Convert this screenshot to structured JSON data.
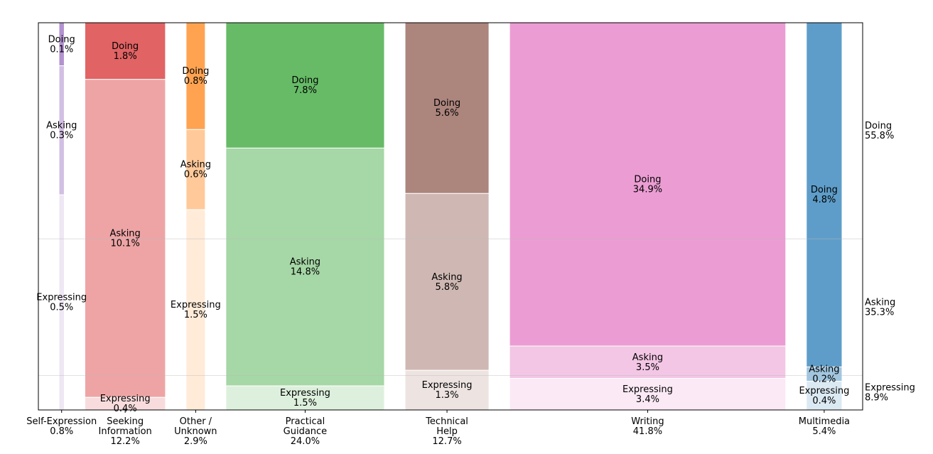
{
  "chart_data": {
    "type": "mosaic",
    "title": "",
    "xlabel": "",
    "ylabel": "",
    "ylim": [
      0,
      100
    ],
    "grid": false,
    "segment_order": [
      "Doing",
      "Asking",
      "Expressing"
    ],
    "categories": [
      {
        "name": "Self-Expression",
        "share": 0.8,
        "label": "Self-Expression\n0.8%",
        "color": "#9467bd",
        "segments": [
          {
            "name": "Doing",
            "value": 0.1,
            "label": "Doing\n0.1%"
          },
          {
            "name": "Asking",
            "value": 0.3,
            "label": "Asking\n0.3%"
          },
          {
            "name": "Expressing",
            "value": 0.5,
            "label": "Expressing\n0.5%"
          }
        ]
      },
      {
        "name": "Seeking Information",
        "share": 12.2,
        "label": "Seeking\nInformation\n12.2%",
        "color": "#d62728",
        "segments": [
          {
            "name": "Doing",
            "value": 1.8,
            "label": "Doing\n1.8%"
          },
          {
            "name": "Asking",
            "value": 10.1,
            "label": "Asking\n10.1%"
          },
          {
            "name": "Expressing",
            "value": 0.4,
            "label": "Expressing\n0.4%"
          }
        ]
      },
      {
        "name": "Other / Unknown",
        "share": 2.9,
        "label": "Other /\nUnknown\n2.9%",
        "color": "#ff7f0e",
        "segments": [
          {
            "name": "Doing",
            "value": 0.8,
            "label": "Doing\n0.8%"
          },
          {
            "name": "Asking",
            "value": 0.6,
            "label": "Asking\n0.6%"
          },
          {
            "name": "Expressing",
            "value": 1.5,
            "label": "Expressing\n1.5%"
          }
        ]
      },
      {
        "name": "Practical Guidance",
        "share": 24.0,
        "label": "Practical\nGuidance\n24.0%",
        "color": "#2ca02c",
        "segments": [
          {
            "name": "Doing",
            "value": 7.8,
            "label": "Doing\n7.8%"
          },
          {
            "name": "Asking",
            "value": 14.8,
            "label": "Asking\n14.8%"
          },
          {
            "name": "Expressing",
            "value": 1.5,
            "label": "Expressing\n1.5%"
          }
        ]
      },
      {
        "name": "Technical Help",
        "share": 12.7,
        "label": "Technical\nHelp\n12.7%",
        "color": "#8c564b",
        "segments": [
          {
            "name": "Doing",
            "value": 5.6,
            "label": "Doing\n5.6%"
          },
          {
            "name": "Asking",
            "value": 5.8,
            "label": "Asking\n5.8%"
          },
          {
            "name": "Expressing",
            "value": 1.3,
            "label": "Expressing\n1.3%"
          }
        ]
      },
      {
        "name": "Writing",
        "share": 41.8,
        "label": "Writing\n41.8%",
        "color": "#e377c2",
        "segments": [
          {
            "name": "Doing",
            "value": 34.9,
            "label": "Doing\n34.9%"
          },
          {
            "name": "Asking",
            "value": 3.5,
            "label": "Asking\n3.5%"
          },
          {
            "name": "Expressing",
            "value": 3.4,
            "label": "Expressing\n3.4%"
          }
        ]
      },
      {
        "name": "Multimedia",
        "share": 5.4,
        "label": "Multimedia\n5.4%",
        "color": "#1f77b4",
        "segments": [
          {
            "name": "Doing",
            "value": 4.8,
            "label": "Doing\n4.8%"
          },
          {
            "name": "Asking",
            "value": 0.2,
            "label": "Asking\n0.2%"
          },
          {
            "name": "Expressing",
            "value": 0.4,
            "label": "Expressing\n0.4%"
          }
        ]
      }
    ],
    "totals": [
      {
        "name": "Doing",
        "value": 55.8,
        "label": "Doing\n55.8%"
      },
      {
        "name": "Asking",
        "value": 35.3,
        "label": "Asking\n35.3%"
      },
      {
        "name": "Expressing",
        "value": 8.9,
        "label": "Expressing\n8.9%"
      }
    ]
  }
}
